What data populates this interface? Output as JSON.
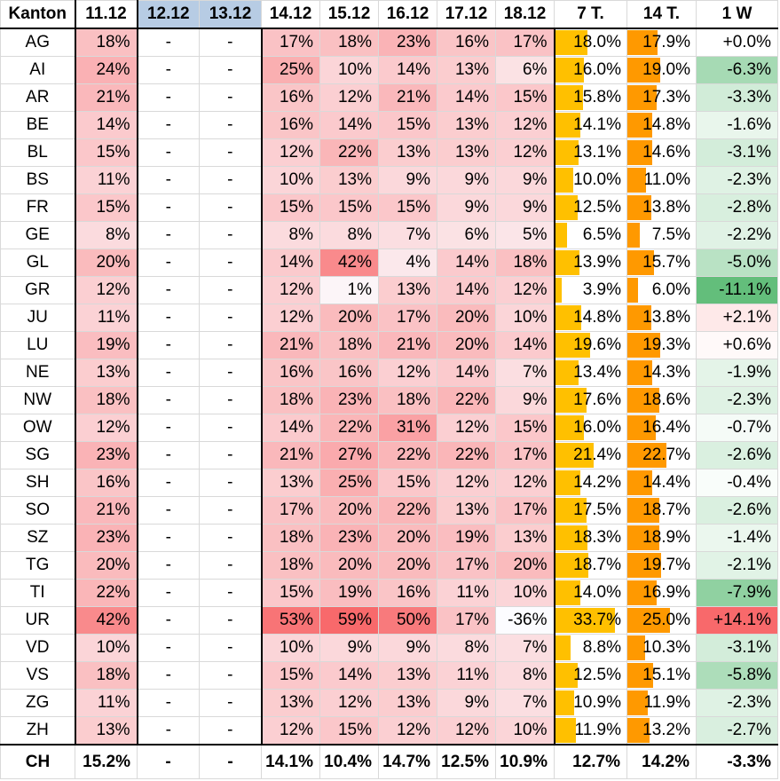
{
  "headers": [
    "Kanton",
    "11.12",
    "12.12",
    "13.12",
    "14.12",
    "15.12",
    "16.12",
    "17.12",
    "18.12",
    "7 T.",
    "14 T.",
    "1 W"
  ],
  "rows": [
    {
      "k": "AG",
      "d": [
        "18%",
        "-",
        "-",
        "17%",
        "18%",
        "23%",
        "16%",
        "17%"
      ],
      "t7": "18.0%",
      "t14": "17.9%",
      "w": "+0.0%"
    },
    {
      "k": "AI",
      "d": [
        "24%",
        "-",
        "-",
        "25%",
        "10%",
        "14%",
        "13%",
        "6%"
      ],
      "t7": "16.0%",
      "t14": "19.0%",
      "w": "-6.3%"
    },
    {
      "k": "AR",
      "d": [
        "21%",
        "-",
        "-",
        "16%",
        "12%",
        "21%",
        "14%",
        "15%"
      ],
      "t7": "15.8%",
      "t14": "17.3%",
      "w": "-3.3%"
    },
    {
      "k": "BE",
      "d": [
        "14%",
        "-",
        "-",
        "16%",
        "14%",
        "15%",
        "13%",
        "12%"
      ],
      "t7": "14.1%",
      "t14": "14.8%",
      "w": "-1.6%"
    },
    {
      "k": "BL",
      "d": [
        "15%",
        "-",
        "-",
        "12%",
        "22%",
        "13%",
        "13%",
        "12%"
      ],
      "t7": "13.1%",
      "t14": "14.6%",
      "w": "-3.1%"
    },
    {
      "k": "BS",
      "d": [
        "11%",
        "-",
        "-",
        "10%",
        "13%",
        "9%",
        "9%",
        "9%"
      ],
      "t7": "10.0%",
      "t14": "11.0%",
      "w": "-2.3%"
    },
    {
      "k": "FR",
      "d": [
        "15%",
        "-",
        "-",
        "15%",
        "15%",
        "15%",
        "9%",
        "9%"
      ],
      "t7": "12.5%",
      "t14": "13.8%",
      "w": "-2.8%"
    },
    {
      "k": "GE",
      "d": [
        "8%",
        "-",
        "-",
        "8%",
        "8%",
        "7%",
        "6%",
        "5%"
      ],
      "t7": "6.5%",
      "t14": "7.5%",
      "w": "-2.2%"
    },
    {
      "k": "GL",
      "d": [
        "20%",
        "-",
        "-",
        "14%",
        "42%",
        "4%",
        "14%",
        "18%"
      ],
      "t7": "13.9%",
      "t14": "15.7%",
      "w": "-5.0%"
    },
    {
      "k": "GR",
      "d": [
        "12%",
        "-",
        "-",
        "12%",
        "1%",
        "13%",
        "14%",
        "12%"
      ],
      "t7": "3.9%",
      "t14": "6.0%",
      "w": "-11.1%"
    },
    {
      "k": "JU",
      "d": [
        "11%",
        "-",
        "-",
        "12%",
        "20%",
        "17%",
        "20%",
        "10%"
      ],
      "t7": "14.8%",
      "t14": "13.8%",
      "w": "+2.1%"
    },
    {
      "k": "LU",
      "d": [
        "19%",
        "-",
        "-",
        "21%",
        "18%",
        "21%",
        "20%",
        "14%"
      ],
      "t7": "19.6%",
      "t14": "19.3%",
      "w": "+0.6%"
    },
    {
      "k": "NE",
      "d": [
        "13%",
        "-",
        "-",
        "16%",
        "16%",
        "12%",
        "14%",
        "7%"
      ],
      "t7": "13.4%",
      "t14": "14.3%",
      "w": "-1.9%"
    },
    {
      "k": "NW",
      "d": [
        "18%",
        "-",
        "-",
        "18%",
        "23%",
        "18%",
        "22%",
        "9%"
      ],
      "t7": "17.6%",
      "t14": "18.6%",
      "w": "-2.3%"
    },
    {
      "k": "OW",
      "d": [
        "12%",
        "-",
        "-",
        "14%",
        "22%",
        "31%",
        "12%",
        "15%"
      ],
      "t7": "16.0%",
      "t14": "16.4%",
      "w": "-0.7%"
    },
    {
      "k": "SG",
      "d": [
        "23%",
        "-",
        "-",
        "21%",
        "27%",
        "22%",
        "22%",
        "17%"
      ],
      "t7": "21.4%",
      "t14": "22.7%",
      "w": "-2.6%"
    },
    {
      "k": "SH",
      "d": [
        "16%",
        "-",
        "-",
        "13%",
        "25%",
        "15%",
        "12%",
        "12%"
      ],
      "t7": "14.2%",
      "t14": "14.4%",
      "w": "-0.4%"
    },
    {
      "k": "SO",
      "d": [
        "21%",
        "-",
        "-",
        "17%",
        "20%",
        "22%",
        "13%",
        "17%"
      ],
      "t7": "17.5%",
      "t14": "18.7%",
      "w": "-2.6%"
    },
    {
      "k": "SZ",
      "d": [
        "23%",
        "-",
        "-",
        "18%",
        "23%",
        "20%",
        "19%",
        "13%"
      ],
      "t7": "18.3%",
      "t14": "18.9%",
      "w": "-1.4%"
    },
    {
      "k": "TG",
      "d": [
        "20%",
        "-",
        "-",
        "18%",
        "20%",
        "20%",
        "17%",
        "20%"
      ],
      "t7": "18.7%",
      "t14": "19.7%",
      "w": "-2.1%"
    },
    {
      "k": "TI",
      "d": [
        "22%",
        "-",
        "-",
        "15%",
        "19%",
        "16%",
        "11%",
        "10%"
      ],
      "t7": "14.0%",
      "t14": "16.9%",
      "w": "-7.9%"
    },
    {
      "k": "UR",
      "d": [
        "42%",
        "-",
        "-",
        "53%",
        "59%",
        "50%",
        "17%",
        "-36%"
      ],
      "t7": "33.7%",
      "t14": "25.0%",
      "w": "+14.1%"
    },
    {
      "k": "VD",
      "d": [
        "10%",
        "-",
        "-",
        "10%",
        "9%",
        "9%",
        "8%",
        "7%"
      ],
      "t7": "8.8%",
      "t14": "10.3%",
      "w": "-3.1%"
    },
    {
      "k": "VS",
      "d": [
        "18%",
        "-",
        "-",
        "15%",
        "14%",
        "13%",
        "11%",
        "8%"
      ],
      "t7": "12.5%",
      "t14": "15.1%",
      "w": "-5.8%"
    },
    {
      "k": "ZG",
      "d": [
        "11%",
        "-",
        "-",
        "13%",
        "12%",
        "13%",
        "9%",
        "7%"
      ],
      "t7": "10.9%",
      "t14": "11.9%",
      "w": "-2.3%"
    },
    {
      "k": "ZH",
      "d": [
        "13%",
        "-",
        "-",
        "12%",
        "15%",
        "12%",
        "12%",
        "10%"
      ],
      "t7": "11.9%",
      "t14": "13.2%",
      "w": "-2.7%"
    }
  ],
  "total": {
    "k": "CH",
    "d": [
      "15.2%",
      "-",
      "-",
      "14.1%",
      "10.4%",
      "14.7%",
      "12.5%",
      "10.9%"
    ],
    "t7": "12.7%",
    "t14": "14.2%",
    "w": "-3.3%"
  },
  "colors": {
    "heat_red": "#f8696b",
    "heat_white": "#fcfcff",
    "bar_7t": "#ffc000",
    "bar_14t": "#ff9900",
    "delta_green": "#63be7b",
    "delta_red": "#f8696b",
    "header_highlight": "#b7cce4"
  }
}
